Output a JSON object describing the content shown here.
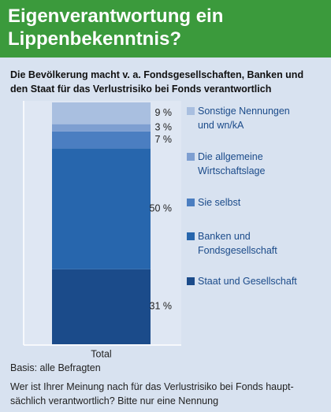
{
  "chart_data": {
    "type": "stacked_bar",
    "title": "Eigenverantwortung ein\nLippenbekenntnis?",
    "subtitle": "Die Bevölkerung macht v. a. Fondsgesellschaften, Banken und\nden Staat für das Verlustrisiko bei Fonds verantwortlich",
    "categories": [
      "Total"
    ],
    "ylim": [
      0,
      100
    ],
    "series": [
      {
        "name": "Sonstige Nennungen\nund wn/kA",
        "color": "#a9bfe0",
        "values": [
          9
        ],
        "value_labels": [
          "9 %"
        ]
      },
      {
        "name": "Die allgemeine\nWirtschaftslage",
        "color": "#7e9fd1",
        "values": [
          3
        ],
        "value_labels": [
          "3 %"
        ]
      },
      {
        "name": "Sie selbst",
        "color": "#4b7ec1",
        "values": [
          7
        ],
        "value_labels": [
          "7 %"
        ]
      },
      {
        "name": "Banken und\nFondsgesellschaft",
        "color": "#2766ad",
        "values": [
          50
        ],
        "value_labels": [
          "50 %"
        ]
      },
      {
        "name": "Staat und Gesellschaft",
        "color": "#1b4b8a",
        "values": [
          31
        ],
        "value_labels": [
          "31 %"
        ]
      }
    ],
    "notes": [
      "Basis: alle Befragten",
      "Wer ist Ihrer Meinung nach für das Verlustrisiko bei Fonds haupt-\nsächlich verantwortlich? Bitte nur eine Nennung"
    ]
  }
}
